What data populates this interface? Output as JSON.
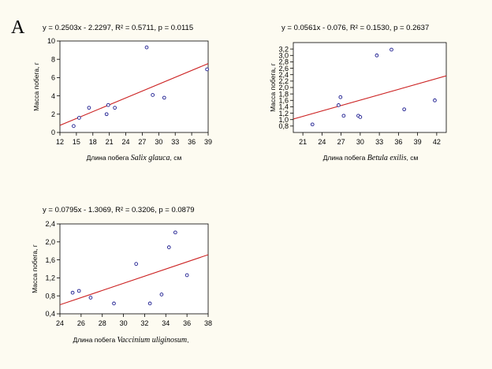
{
  "panel_label": "A",
  "chart_data": [
    {
      "type": "scatter",
      "equation": "y = 0.2503x - 2.2297, R² = 0.5711, p = 0.0115",
      "xlabel_prefix": "Длина побега ",
      "xlabel_species": "Salix glauca",
      "xlabel_suffix": ", см",
      "ylabel": "Масса побега, г",
      "xlim": [
        12,
        39
      ],
      "ylim": [
        0,
        10
      ],
      "xticks": [
        12,
        15,
        18,
        21,
        24,
        27,
        30,
        33,
        36,
        39
      ],
      "yticks": [
        0,
        2,
        4,
        6,
        8,
        10
      ],
      "tick_labels_x": [
        "12",
        "15",
        "18",
        "21",
        "24",
        "27",
        "30",
        "33",
        "36",
        "39"
      ],
      "tick_labels_y": [
        "0",
        "2",
        "4",
        "6",
        "8",
        "10"
      ],
      "fit": {
        "slope": 0.2503,
        "intercept": -2.2297
      },
      "points": [
        {
          "x": 14.5,
          "y": 0.7
        },
        {
          "x": 15.5,
          "y": 1.6
        },
        {
          "x": 17.3,
          "y": 2.7
        },
        {
          "x": 20.5,
          "y": 2.0
        },
        {
          "x": 20.8,
          "y": 3.0
        },
        {
          "x": 22.0,
          "y": 2.7
        },
        {
          "x": 27.8,
          "y": 9.3
        },
        {
          "x": 28.9,
          "y": 4.1
        },
        {
          "x": 31.0,
          "y": 3.8
        },
        {
          "x": 38.8,
          "y": 6.9
        }
      ],
      "point_color": "#1b1b8f",
      "line_color": "#cc2222",
      "grid": false
    },
    {
      "type": "scatter",
      "equation": "y = 0.0561x - 0.076, R² = 0.1530, p = 0.2637",
      "xlabel_prefix": "Длина побега ",
      "xlabel_species": "Betula exilis",
      "xlabel_suffix": ", см",
      "ylabel": "Масса побега, г",
      "xlim": [
        19.5,
        43.5
      ],
      "ylim": [
        0.6,
        3.4
      ],
      "xticks": [
        21,
        24,
        27,
        30,
        33,
        36,
        39,
        42
      ],
      "yticks": [
        0.8,
        1.0,
        1.2,
        1.4,
        1.6,
        1.8,
        2.0,
        2.2,
        2.4,
        2.6,
        2.8,
        3.0,
        3.2
      ],
      "tick_labels_x": [
        "21",
        "24",
        "27",
        "30",
        "33",
        "36",
        "39",
        "42"
      ],
      "tick_labels_y": [
        "0,8",
        "1,0",
        "1,2",
        "1,4",
        "1,6",
        "1,8",
        "2,0",
        "2,2",
        "2,4",
        "2,6",
        "2,8",
        "3,0",
        "3,2"
      ],
      "fit": {
        "slope": 0.0561,
        "intercept": -0.076
      },
      "points": [
        {
          "x": 22.5,
          "y": 0.85
        },
        {
          "x": 26.6,
          "y": 1.45
        },
        {
          "x": 26.9,
          "y": 1.7
        },
        {
          "x": 27.4,
          "y": 1.12
        },
        {
          "x": 29.7,
          "y": 1.12
        },
        {
          "x": 30.0,
          "y": 1.08
        },
        {
          "x": 32.6,
          "y": 3.0
        },
        {
          "x": 34.9,
          "y": 3.18
        },
        {
          "x": 36.9,
          "y": 1.32
        },
        {
          "x": 41.7,
          "y": 1.6
        }
      ],
      "point_color": "#1b1b8f",
      "line_color": "#cc2222",
      "grid": false
    },
    {
      "type": "scatter",
      "equation": "y = 0.0795x - 1.3069, R² = 0.3206, p = 0.0879",
      "xlabel_prefix": "Длина побега ",
      "xlabel_species": "Vaccinium uliginosum",
      "xlabel_suffix": ",",
      "ylabel": "Масса побега, г",
      "xlim": [
        24,
        38
      ],
      "ylim": [
        0.4,
        2.4
      ],
      "xticks": [
        24,
        26,
        28,
        30,
        32,
        34,
        36,
        38
      ],
      "yticks": [
        0.4,
        0.8,
        1.2,
        1.6,
        2.0,
        2.4
      ],
      "tick_labels_x": [
        "24",
        "26",
        "28",
        "30",
        "32",
        "34",
        "36",
        "38"
      ],
      "tick_labels_y": [
        "0,4",
        "0,8",
        "1,2",
        "1,6",
        "2,0",
        "2,4"
      ],
      "fit": {
        "slope": 0.0795,
        "intercept": -1.3069
      },
      "points": [
        {
          "x": 25.2,
          "y": 0.87
        },
        {
          "x": 25.8,
          "y": 0.91
        },
        {
          "x": 26.9,
          "y": 0.76
        },
        {
          "x": 29.1,
          "y": 0.63
        },
        {
          "x": 31.2,
          "y": 1.51
        },
        {
          "x": 32.5,
          "y": 0.63
        },
        {
          "x": 33.6,
          "y": 0.83
        },
        {
          "x": 34.3,
          "y": 1.88
        },
        {
          "x": 34.9,
          "y": 2.21
        },
        {
          "x": 36.0,
          "y": 1.26
        }
      ],
      "point_color": "#1b1b8f",
      "line_color": "#cc2222",
      "grid": false
    }
  ]
}
